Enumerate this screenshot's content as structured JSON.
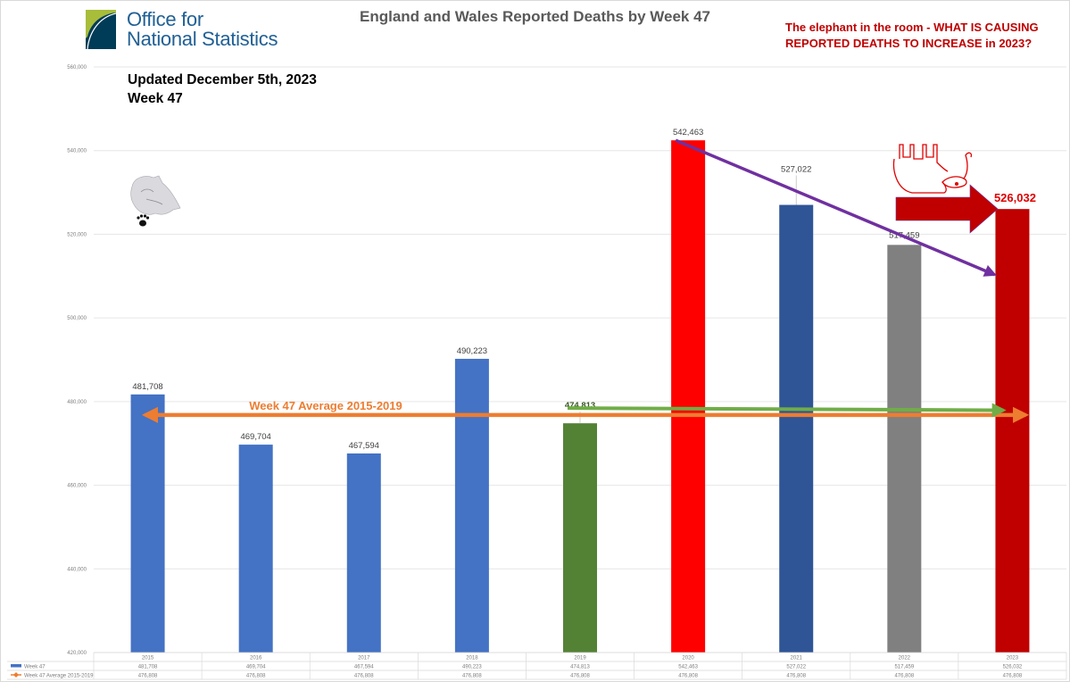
{
  "header": {
    "logo_line1": "Office for",
    "logo_line2": "National Statistics",
    "title": "England and Wales Reported Deaths by Week 47",
    "note_line1": "The elephant in the room - WHAT IS CAUSING",
    "note_line2": "REPORTED DEATHS TO INCREASE in 2023?",
    "updated_line1": "Updated December 5th, 2023",
    "updated_line2": "Week 47"
  },
  "icons": {
    "logo": "ons-logo-icon",
    "wolf": "wolf-paw-icon",
    "elephant": "upside-down-elephant-icon"
  },
  "chart_data": {
    "type": "bar",
    "title": "England and Wales Reported Deaths by Week 47",
    "xlabel": "",
    "ylabel": "",
    "ylim": [
      420000,
      560000
    ],
    "yticks": [
      420000,
      440000,
      460000,
      480000,
      500000,
      520000,
      540000,
      560000
    ],
    "ytick_labels": [
      "420,000",
      "440,000",
      "460,000",
      "480,000",
      "500,000",
      "520,000",
      "540,000",
      "560,000"
    ],
    "grid": true,
    "categories": [
      "2015",
      "2016",
      "2017",
      "2018",
      "2019",
      "2020",
      "2021",
      "2022",
      "2023"
    ],
    "series": [
      {
        "name": "Week 47",
        "type": "bar",
        "values": [
          481708,
          469704,
          467594,
          490223,
          474813,
          542463,
          527022,
          517459,
          526032
        ],
        "labels": [
          "481,708",
          "469,704",
          "467,594",
          "490,223",
          "474,813",
          "542,463",
          "527,022",
          "517,459",
          "526,032"
        ],
        "colors": [
          "#4472c4",
          "#4472c4",
          "#4472c4",
          "#4472c4",
          "#548235",
          "#ff0000",
          "#2f5597",
          "#808080",
          "#c00000"
        ],
        "label_colors": [
          "#404040",
          "#404040",
          "#404040",
          "#404040",
          "#375623",
          "#404040",
          "#404040",
          "#404040",
          "#e00000"
        ]
      },
      {
        "name": "Week 47 Average 2015-2019",
        "type": "line",
        "values": [
          476808,
          476808,
          476808,
          476808,
          476808,
          476808,
          476808,
          476808,
          476808
        ],
        "labels": [
          "476,808",
          "476,808",
          "476,808",
          "476,808",
          "476,808",
          "476,808",
          "476,808",
          "476,808",
          "476,808"
        ],
        "color": "#ed7d31"
      }
    ],
    "legend": "bottom data table",
    "annotations": [
      {
        "text": "Week 47 Average 2015-2019",
        "color": "#ed7d31",
        "kind": "double-arrow",
        "value": 476808,
        "from": "2015",
        "to": "2023"
      },
      {
        "text": "",
        "color": "#70ad47",
        "kind": "arrow",
        "from": "2019",
        "to": "2023",
        "value_from": 474813,
        "value_to": 474300
      },
      {
        "text": "",
        "color": "#7030a0",
        "kind": "arrow",
        "from": "2020",
        "to": "2023",
        "value_from": 542463,
        "value_to": 505000
      },
      {
        "text": "",
        "color": "#c00000",
        "kind": "block-arrow",
        "to": "2023"
      }
    ],
    "table_rows": [
      {
        "name": "Week 47",
        "legend_color": "#4472c4"
      },
      {
        "name": "Week 47 Average 2015-2019",
        "legend_color": "#ed7d31"
      }
    ]
  }
}
